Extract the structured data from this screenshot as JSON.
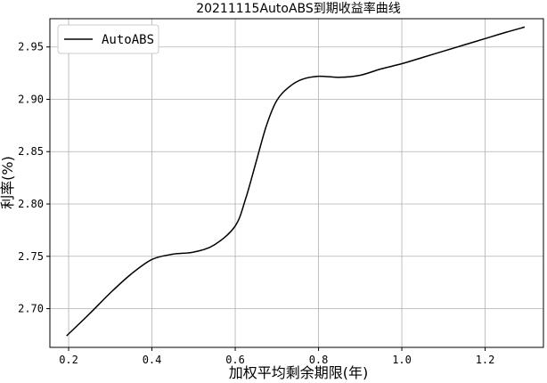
{
  "chart_data": {
    "type": "line",
    "title": "20211115AutoABS到期收益率曲线",
    "xlabel": "加权平均剩余期限(年)",
    "ylabel": "利率(%)",
    "xlim": [
      0.155,
      1.34
    ],
    "ylim": [
      2.663,
      2.977
    ],
    "xticks": [
      0.2,
      0.4,
      0.6,
      0.8,
      1.0,
      1.2
    ],
    "xtick_labels": [
      "0.2",
      "0.4",
      "0.6",
      "0.8",
      "1.0",
      "1.2"
    ],
    "yticks": [
      2.7,
      2.75,
      2.8,
      2.85,
      2.9,
      2.95
    ],
    "ytick_labels": [
      "2.70",
      "2.75",
      "2.80",
      "2.85",
      "2.90",
      "2.95"
    ],
    "grid": true,
    "legend": {
      "position": "top-left",
      "entries": [
        "AutoABS"
      ]
    },
    "series": [
      {
        "name": "AutoABS",
        "color": "#000000",
        "x": [
          0.195,
          0.25,
          0.3,
          0.35,
          0.4,
          0.45,
          0.5,
          0.55,
          0.6,
          0.625,
          0.65,
          0.675,
          0.7,
          0.73,
          0.76,
          0.8,
          0.85,
          0.9,
          0.95,
          1.0,
          1.05,
          1.1,
          1.15,
          1.2,
          1.25,
          1.295
        ],
        "y": [
          2.674,
          2.695,
          2.715,
          2.733,
          2.747,
          2.752,
          2.754,
          2.761,
          2.779,
          2.805,
          2.84,
          2.875,
          2.899,
          2.912,
          2.919,
          2.922,
          2.921,
          2.923,
          2.929,
          2.934,
          2.94,
          2.946,
          2.952,
          2.958,
          2.964,
          2.969
        ]
      }
    ]
  }
}
